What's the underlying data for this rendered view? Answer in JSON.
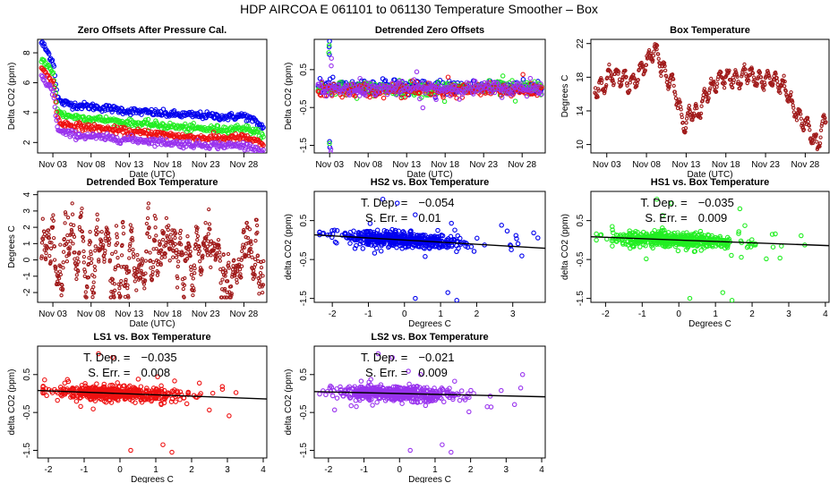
{
  "main_title": "HDP   AIRCOA E   061101 to 061130   Temperature Smoother – Box",
  "colors": {
    "HS2": "#0000ee",
    "HS1": "#22ee22",
    "LS1": "#ee1111",
    "LS2": "#9933ee",
    "box": "#a01a1a"
  },
  "chart_data": [
    {
      "id": "zero-offsets",
      "type": "scatter",
      "title": "Zero Offsets After Pressure Cal.",
      "xlabel": "Date (UTC)",
      "ylabel": "Delta CO2 (ppm)",
      "xlim": [
        1,
        31
      ],
      "ylim": [
        1.3,
        8.9
      ],
      "x_ticks": [
        {
          "v": 3,
          "label": "Nov 03"
        },
        {
          "v": 8,
          "label": "Nov 08"
        },
        {
          "v": 13,
          "label": "Nov 13"
        },
        {
          "v": 18,
          "label": "Nov 18"
        },
        {
          "v": 23,
          "label": "Nov 23"
        },
        {
          "v": 28,
          "label": "Nov 28"
        }
      ],
      "y_ticks": [
        2,
        4,
        6,
        8
      ],
      "series": [
        {
          "name": "HS2",
          "x": [
            1.5,
            2,
            2.6,
            3.1,
            3.6,
            4,
            6,
            8,
            10,
            13,
            16,
            18,
            20,
            23,
            26,
            28,
            29.5,
            30.5
          ],
          "values": [
            8.7,
            8.3,
            7.8,
            7.3,
            5.0,
            4.7,
            4.5,
            4.4,
            4.3,
            4.1,
            4.0,
            3.9,
            3.85,
            3.8,
            3.7,
            3.8,
            3.4,
            3.0
          ]
        },
        {
          "name": "HS1",
          "x": [
            1.5,
            2,
            2.6,
            3.1,
            3.6,
            4,
            6,
            8,
            10,
            13,
            16,
            18,
            20,
            23,
            26,
            28,
            29.5,
            30.5
          ],
          "values": [
            7.6,
            7.3,
            6.9,
            6.5,
            4.3,
            3.9,
            3.7,
            3.6,
            3.5,
            3.3,
            3.2,
            3.1,
            3.0,
            2.9,
            2.9,
            3.0,
            2.7,
            2.4
          ]
        },
        {
          "name": "LS1",
          "x": [
            1.5,
            2,
            2.6,
            3.1,
            3.6,
            4,
            6,
            8,
            10,
            13,
            16,
            18,
            20,
            23,
            26,
            28,
            29.5,
            30.5
          ],
          "values": [
            6.9,
            6.7,
            6.3,
            5.9,
            3.6,
            3.3,
            3.1,
            3.0,
            2.9,
            2.7,
            2.6,
            2.5,
            2.4,
            2.3,
            2.3,
            2.35,
            2.1,
            1.8
          ]
        },
        {
          "name": "LS2",
          "x": [
            1.5,
            2,
            2.6,
            3.1,
            3.6,
            4,
            6,
            8,
            10,
            13,
            16,
            18,
            20,
            23,
            26,
            28,
            29.5,
            30.5
          ],
          "values": [
            6.4,
            6.1,
            5.7,
            5.2,
            2.9,
            2.7,
            2.5,
            2.4,
            2.3,
            2.2,
            2.1,
            2.0,
            1.9,
            1.85,
            1.8,
            1.8,
            1.6,
            1.4
          ]
        }
      ]
    },
    {
      "id": "detrended-zero-offsets",
      "type": "scatter",
      "title": "Detrended Zero Offsets",
      "xlabel": "Date (UTC)",
      "ylabel": "Delta CO2 (ppm)",
      "xlim": [
        1,
        31
      ],
      "ylim": [
        -1.7,
        1.3
      ],
      "x_ticks": [
        {
          "v": 3,
          "label": "Nov 03"
        },
        {
          "v": 8,
          "label": "Nov 08"
        },
        {
          "v": 13,
          "label": "Nov 13"
        },
        {
          "v": 18,
          "label": "Nov 18"
        },
        {
          "v": 23,
          "label": "Nov 23"
        },
        {
          "v": 28,
          "label": "Nov 28"
        }
      ],
      "y_ticks": [
        {
          "v": -1.5,
          "label": "-1.5"
        },
        {
          "v": -0.5,
          "label": "-0.5"
        },
        {
          "v": 0.5,
          "label": "0.5"
        }
      ],
      "band": {
        "min": -0.25,
        "max": 0.25
      },
      "spikes": [
        {
          "series": "HS2",
          "x": 3.0,
          "values": [
            1.25,
            1.1,
            0.9,
            -1.4,
            -1.55
          ]
        },
        {
          "series": "HS1",
          "x": 2.9,
          "values": [
            1.15,
            0.95,
            -1.45
          ]
        },
        {
          "series": "LS2",
          "x": 3.2,
          "values": [
            0.8,
            0.6,
            -1.6,
            -1.7
          ]
        }
      ]
    },
    {
      "id": "box-temperature",
      "type": "line",
      "title": "Box Temperature",
      "xlabel": "Date (UTC)",
      "ylabel": "Degrees C",
      "xlim": [
        1,
        31
      ],
      "ylim": [
        9,
        22.5
      ],
      "x_ticks": [
        {
          "v": 3,
          "label": "Nov 03"
        },
        {
          "v": 8,
          "label": "Nov 08"
        },
        {
          "v": 13,
          "label": "Nov 13"
        },
        {
          "v": 18,
          "label": "Nov 18"
        },
        {
          "v": 23,
          "label": "Nov 23"
        },
        {
          "v": 28,
          "label": "Nov 28"
        }
      ],
      "y_ticks": [
        10,
        14,
        18,
        22
      ],
      "x": [
        1.5,
        2.5,
        3.5,
        4.5,
        5.5,
        6.5,
        7.5,
        8.5,
        9,
        9.5,
        10.5,
        11.5,
        12,
        12.5,
        13,
        13.5,
        14.5,
        15.5,
        16.5,
        17.5,
        18.5,
        19.5,
        20.5,
        21.5,
        22.5,
        23.5,
        24.5,
        25.5,
        26.5,
        27.5,
        28.5,
        29,
        29.5,
        30,
        30.5
      ],
      "values": [
        16.5,
        17,
        18.5,
        18,
        17.5,
        17.5,
        19,
        20.5,
        21.5,
        20.5,
        18,
        17,
        15,
        13,
        12,
        14,
        13.5,
        16,
        17,
        18,
        18,
        17.5,
        18.5,
        18,
        17.5,
        18,
        17.5,
        16.5,
        14.5,
        13,
        12,
        10.5,
        9.8,
        11.5,
        13
      ]
    },
    {
      "id": "detrended-box-temperature",
      "type": "line",
      "title": "Detrended Box Temperature",
      "xlabel": "Date (UTC)",
      "ylabel": "Degrees C",
      "xlim": [
        1,
        31
      ],
      "ylim": [
        -2.6,
        4.2
      ],
      "x_ticks": [
        {
          "v": 3,
          "label": "Nov 03"
        },
        {
          "v": 8,
          "label": "Nov 08"
        },
        {
          "v": 13,
          "label": "Nov 13"
        },
        {
          "v": 18,
          "label": "Nov 18"
        },
        {
          "v": 23,
          "label": "Nov 23"
        },
        {
          "v": 28,
          "label": "Nov 28"
        }
      ],
      "y_ticks": [
        -2,
        -1,
        0,
        1,
        2,
        3,
        4
      ]
    },
    {
      "id": "hs2-vs-box",
      "type": "scatter",
      "title": "HS2 vs. Box Temperature",
      "series_name": "HS2",
      "xlabel": "Degrees C",
      "ylabel": "delta CO2 (ppm)",
      "xlim": [
        -2.5,
        3.9
      ],
      "ylim": [
        -1.6,
        1.25
      ],
      "x_ticks": [
        -2,
        -1,
        0,
        1,
        2,
        3
      ],
      "y_ticks": [
        {
          "v": -1.5,
          "label": "-1.5"
        },
        {
          "v": -0.5,
          "label": "-0.5"
        },
        {
          "v": 0.5,
          "label": "0.5"
        }
      ],
      "fit": {
        "slope": -0.054,
        "intercept": 0.0
      },
      "annotations": {
        "dep_label": "T. Dep. =",
        "dep_value": "−0.054",
        "err_label": "S. Err. =",
        "err_value": "0.01"
      }
    },
    {
      "id": "hs1-vs-box",
      "type": "scatter",
      "title": "HS1 vs. Box Temperature",
      "series_name": "HS1",
      "xlabel": "Degrees C",
      "ylabel": "delta CO2 (ppm)",
      "xlim": [
        -2.4,
        4.1
      ],
      "ylim": [
        -1.6,
        1.25
      ],
      "x_ticks": [
        -2,
        -1,
        0,
        1,
        2,
        3,
        4
      ],
      "y_ticks": [
        {
          "v": -1.5,
          "label": "-1.5"
        },
        {
          "v": -0.5,
          "label": "-0.5"
        },
        {
          "v": 0.5,
          "label": "0.5"
        }
      ],
      "fit": {
        "slope": -0.035,
        "intercept": 0.0
      },
      "annotations": {
        "dep_label": "T. Dep. =",
        "dep_value": "−0.035",
        "err_label": "S. Err. =",
        "err_value": "0.009"
      }
    },
    {
      "id": "ls1-vs-box",
      "type": "scatter",
      "title": "LS1 vs. Box Temperature",
      "series_name": "LS1",
      "xlabel": "Degrees C",
      "ylabel": "delta CO2 (ppm)",
      "xlim": [
        -2.3,
        4.1
      ],
      "ylim": [
        -1.7,
        1.25
      ],
      "x_ticks": [
        -2,
        -1,
        0,
        1,
        2,
        3,
        4
      ],
      "y_ticks": [
        {
          "v": -1.5,
          "label": "-1.5"
        },
        {
          "v": -0.5,
          "label": "-0.5"
        },
        {
          "v": 0.5,
          "label": "0.5"
        }
      ],
      "fit": {
        "slope": -0.035,
        "intercept": 0.0
      },
      "annotations": {
        "dep_label": "T. Dep. =",
        "dep_value": "−0.035",
        "err_label": "S. Err. =",
        "err_value": "0.008"
      }
    },
    {
      "id": "ls2-vs-box",
      "type": "scatter",
      "title": "LS2 vs. Box Temperature",
      "series_name": "LS2",
      "xlabel": "Degrees C",
      "ylabel": "delta CO2 (ppm)",
      "xlim": [
        -2.4,
        4.1
      ],
      "ylim": [
        -1.7,
        1.25
      ],
      "x_ticks": [
        -2,
        -1,
        0,
        1,
        2,
        3,
        4
      ],
      "y_ticks": [
        {
          "v": -1.5,
          "label": "-1.5"
        },
        {
          "v": -0.5,
          "label": "-0.5"
        },
        {
          "v": 0.5,
          "label": "0.5"
        }
      ],
      "fit": {
        "slope": -0.021,
        "intercept": 0.0
      },
      "annotations": {
        "dep_label": "T. Dep. =",
        "dep_value": "−0.021",
        "err_label": "S. Err. =",
        "err_value": "0.009"
      }
    }
  ]
}
